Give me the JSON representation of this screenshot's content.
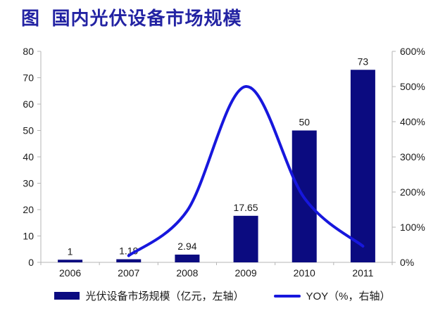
{
  "title": "图  国内光伏设备市场规模",
  "chart_data": {
    "type": "bar+line",
    "categories": [
      "2006",
      "2007",
      "2008",
      "2009",
      "2010",
      "2011"
    ],
    "series": [
      {
        "name": "光伏设备市场规模（亿元，左轴）",
        "type": "bar",
        "axis": "left",
        "values": [
          1,
          1.19,
          2.94,
          17.65,
          50,
          73
        ],
        "labels": [
          "1",
          "1.19",
          "2.94",
          "17.65",
          "50",
          "73"
        ],
        "color": "#0b0b80"
      },
      {
        "name": "YOY（%，右轴）",
        "type": "line",
        "axis": "right",
        "values": [
          null,
          19,
          147,
          500,
          183,
          46
        ],
        "color": "#1717dd"
      }
    ],
    "left_axis": {
      "min": 0,
      "max": 80,
      "step": 10,
      "ticks": [
        "0",
        "10",
        "20",
        "30",
        "40",
        "50",
        "60",
        "70",
        "80"
      ]
    },
    "right_axis": {
      "min": 0,
      "max": 600,
      "step": 100,
      "ticks": [
        "0%",
        "100%",
        "200%",
        "300%",
        "400%",
        "500%",
        "600%"
      ]
    },
    "grid": false,
    "legend_position": "bottom"
  },
  "legend": {
    "bar_label": "光伏设备市场规模（亿元，左轴）",
    "line_label": "YOY（%，右轴）"
  },
  "colors": {
    "bar": "#0b0b80",
    "line": "#1717dd",
    "title": "#2323a3",
    "axis": "#b5b5b5",
    "text": "#1a1a1a"
  }
}
